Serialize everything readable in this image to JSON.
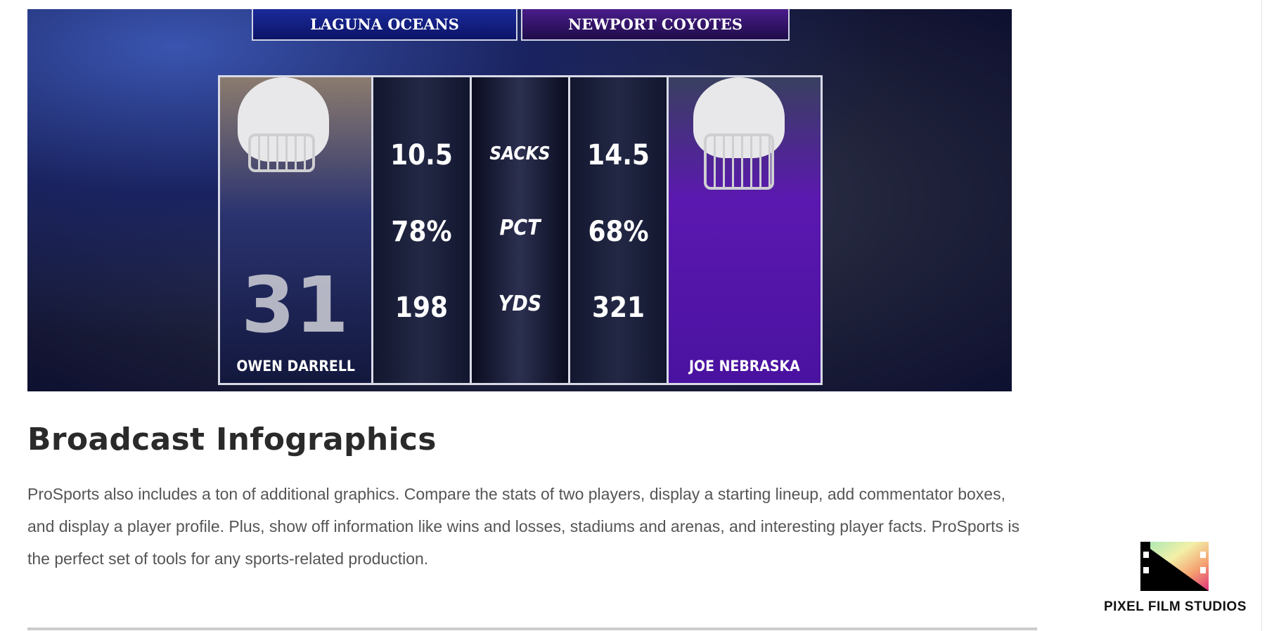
{
  "hero": {
    "teams": [
      "LAGUNA OCEANS",
      "NEWPORT COYOTES"
    ],
    "players": [
      {
        "name": "OWEN DARRELL",
        "jersey": "31",
        "color": "#1b2a9a"
      },
      {
        "name": "JOE NEBRASKA",
        "color": "#5b18b0"
      }
    ],
    "stats": [
      {
        "label": "SACKS",
        "left": "10.5",
        "right": "14.5"
      },
      {
        "label": "PCT",
        "left": "78%",
        "right": "68%"
      },
      {
        "label": "YDS",
        "left": "198",
        "right": "321"
      }
    ]
  },
  "section": {
    "title": "Broadcast Infographics",
    "body": "ProSports also includes a ton of additional graphics. Compare the stats of two players, display a starting lineup, add commentator boxes, and display a player profile. Plus, show off information like wins and losses, stadiums and arenas, and interesting player facts. ProSports is the perfect set of tools for any sports-related production."
  },
  "logo": {
    "text": "PIXEL FILM STUDIOS",
    "icon": "film-strip-icon"
  }
}
